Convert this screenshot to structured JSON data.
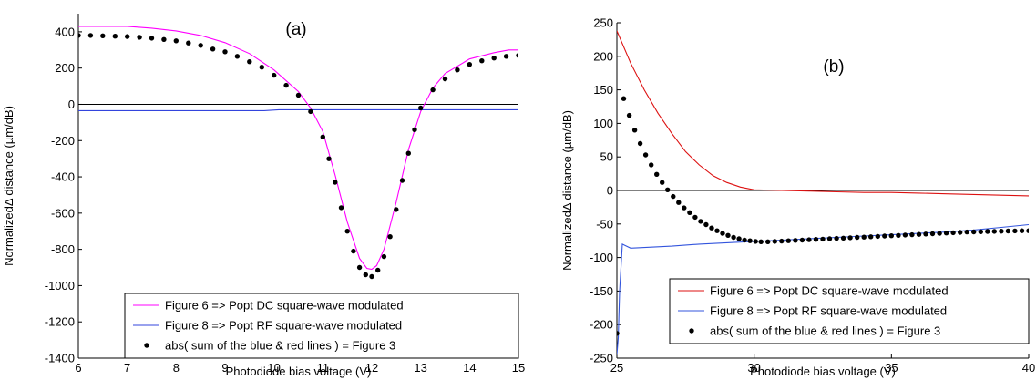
{
  "chart_data": [
    {
      "type": "line",
      "panel_label": "(a)",
      "xlabel": "Photodiode bias voltage (V)",
      "ylabel": "NormalizedΔ distance (µm/dB)",
      "xlim": [
        6,
        15
      ],
      "ylim": [
        -1400,
        500
      ],
      "xticks": [
        6,
        7,
        8,
        9,
        10,
        11,
        12,
        13,
        14,
        15
      ],
      "yticks": [
        -1400,
        -1200,
        -1000,
        -800,
        -600,
        -400,
        -200,
        0,
        200,
        400
      ],
      "zero_line": true,
      "grid": false,
      "legend_position": "bottom-right",
      "series": [
        {
          "name": "Figure 6 => Popt DC square-wave modulated",
          "style": "line",
          "color": "#ff00ff",
          "x": [
            6.0,
            7.0,
            7.5,
            8.0,
            8.5,
            9.0,
            9.5,
            10.0,
            10.5,
            10.75,
            11.0,
            11.25,
            11.5,
            11.75,
            11.9,
            12.0,
            12.1,
            12.25,
            12.5,
            12.75,
            13.0,
            13.25,
            13.5,
            14.0,
            14.5,
            14.8,
            15.0
          ],
          "y": [
            430,
            430,
            420,
            405,
            380,
            340,
            280,
            190,
            70,
            -20,
            -150,
            -390,
            -650,
            -850,
            -905,
            -910,
            -890,
            -800,
            -540,
            -250,
            -40,
            90,
            170,
            250,
            285,
            300,
            300
          ]
        },
        {
          "name": "Figure 8 => Popt RF square-wave modulated",
          "style": "line",
          "color": "#3344dd",
          "x": [
            6.0,
            9.8,
            10.1,
            11.0,
            12.0,
            13.0,
            14.0,
            15.0
          ],
          "y": [
            -35,
            -35,
            -30,
            -30,
            -30,
            -30,
            -30,
            -30
          ]
        },
        {
          "name": "abs( sum of the blue & red lines ) = Figure 3",
          "style": "markers",
          "color": "#000000",
          "x": [
            6.0,
            6.25,
            6.5,
            6.75,
            7.0,
            7.25,
            7.5,
            7.75,
            8.0,
            8.25,
            8.5,
            8.75,
            9.0,
            9.25,
            9.5,
            9.75,
            10.0,
            10.25,
            10.5,
            10.75,
            11.0,
            11.125,
            11.25,
            11.375,
            11.5,
            11.625,
            11.75,
            11.875,
            12.0,
            12.125,
            12.25,
            12.375,
            12.5,
            12.625,
            12.75,
            12.875,
            13.0,
            13.25,
            13.5,
            13.75,
            14.0,
            14.25,
            14.5,
            14.75,
            15.0
          ],
          "y": [
            380,
            380,
            378,
            376,
            374,
            370,
            365,
            358,
            350,
            338,
            325,
            305,
            290,
            265,
            235,
            205,
            160,
            105,
            50,
            -40,
            -180,
            -300,
            -430,
            -570,
            -700,
            -810,
            -900,
            -940,
            -950,
            -915,
            -840,
            -730,
            -580,
            -420,
            -270,
            -140,
            -20,
            80,
            140,
            190,
            220,
            240,
            255,
            265,
            270
          ]
        }
      ]
    },
    {
      "type": "line",
      "panel_label": "(b)",
      "xlabel": "Photodiode bias voltage (V)",
      "ylabel": "NormalizedΔ distance (µm/dB)",
      "xlim": [
        25,
        40
      ],
      "ylim": [
        -250,
        250
      ],
      "xticks": [
        25,
        30,
        35,
        40
      ],
      "yticks": [
        -250,
        -200,
        -150,
        -100,
        -50,
        0,
        50,
        100,
        150,
        200,
        250
      ],
      "zero_line": true,
      "grid": false,
      "legend_position": "bottom-right",
      "series": [
        {
          "name": "Figure 6 => Popt DC square-wave modulated",
          "style": "line",
          "color": "#dd1111",
          "x": [
            25.0,
            25.5,
            26.0,
            26.5,
            27.0,
            27.5,
            28.0,
            28.5,
            29.0,
            29.5,
            30.0,
            31.0,
            32.0,
            33.0,
            34.0,
            35.0,
            36.0,
            37.0,
            38.0,
            39.0,
            40.0
          ],
          "y": [
            238,
            190,
            150,
            115,
            85,
            58,
            38,
            22,
            12,
            5,
            1,
            0,
            -1,
            -2,
            -3,
            -3,
            -4,
            -5,
            -6,
            -7,
            -8
          ]
        },
        {
          "name": "Figure 8 => Popt RF square-wave modulated",
          "style": "line",
          "color": "#3355dd",
          "x": [
            25.0,
            25.05,
            25.1,
            25.2,
            25.3,
            25.5,
            26.0,
            27.0,
            28.0,
            29.0,
            30.0,
            31.0,
            32.0,
            33.0,
            34.0,
            35.0,
            36.0,
            37.0,
            38.0,
            39.0,
            40.0
          ],
          "y": [
            -245,
            -220,
            -150,
            -80,
            -82,
            -86,
            -85,
            -83,
            -80,
            -78,
            -76,
            -74,
            -72,
            -70,
            -68,
            -66,
            -64,
            -62,
            -59,
            -55,
            -51
          ]
        },
        {
          "name": "abs( sum of the blue & red lines ) = Figure 3",
          "style": "markers",
          "color": "#000000",
          "x": [
            25.0,
            25.25,
            25.45,
            25.65,
            25.85,
            26.05,
            26.25,
            26.45,
            26.65,
            26.85,
            27.05,
            27.25,
            27.45,
            27.65,
            27.85,
            28.05,
            28.25,
            28.45,
            28.65,
            28.85,
            29.05,
            29.25,
            29.45,
            29.65,
            29.85,
            30.05,
            30.25,
            30.5,
            30.75,
            31.0,
            31.25,
            31.5,
            31.75,
            32.0,
            32.25,
            32.5,
            32.75,
            33.0,
            33.25,
            33.5,
            33.75,
            34.0,
            34.25,
            34.5,
            34.75,
            35.0,
            35.25,
            35.5,
            35.75,
            36.0,
            36.25,
            36.5,
            36.75,
            37.0,
            37.25,
            37.5,
            37.75,
            38.0,
            38.25,
            38.5,
            38.75,
            39.0,
            39.25,
            39.5,
            39.75,
            40.0
          ],
          "y": [
            -213,
            137,
            112,
            90,
            70,
            53,
            38,
            24,
            12,
            1,
            -9,
            -18,
            -26,
            -33,
            -40,
            -46,
            -51,
            -56,
            -60,
            -64,
            -67,
            -70,
            -72,
            -74,
            -75,
            -76,
            -76.5,
            -76.5,
            -76,
            -75.5,
            -75,
            -74.5,
            -74,
            -73.5,
            -73,
            -72.5,
            -72,
            -71.5,
            -71,
            -70.5,
            -70,
            -69.5,
            -69,
            -68.5,
            -68,
            -67.5,
            -67,
            -66.5,
            -66,
            -65.5,
            -65,
            -64.5,
            -64,
            -63.5,
            -63,
            -62.5,
            -62,
            -61.8,
            -61.5,
            -61.2,
            -61,
            -60.8,
            -60.5,
            -60.3,
            -60.1,
            -60
          ]
        }
      ]
    }
  ]
}
